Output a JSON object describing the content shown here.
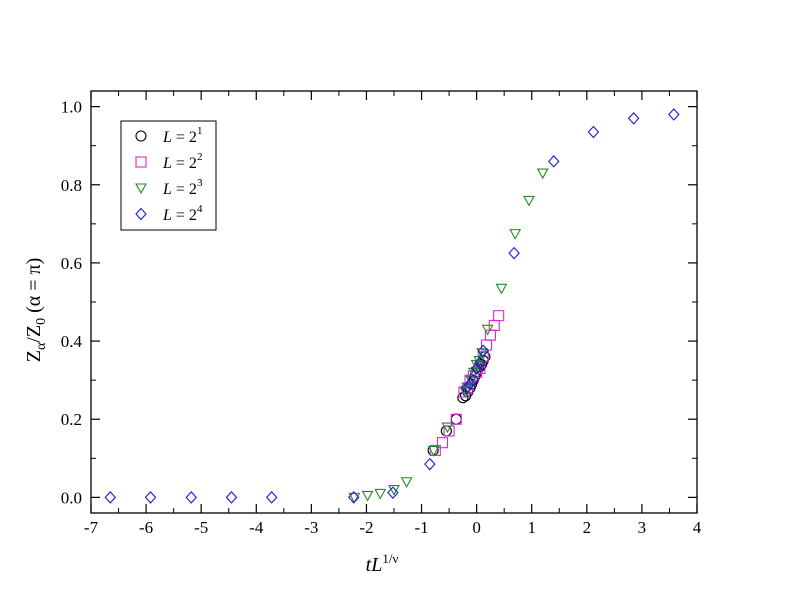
{
  "chart_data": {
    "type": "scatter",
    "xlabel_main": "tL",
    "xlabel_sup": "1/ν",
    "ylabel_html": "Z<sub>α</sub>/Z<sub>0</sub> (α = π)",
    "ylabel_parts": [
      "Z",
      "α",
      "/Z",
      "0",
      " (α = π)"
    ],
    "xlim": [
      -7,
      4
    ],
    "ylim": [
      -0.04,
      1.04
    ],
    "xticks": [
      -7,
      -6,
      -5,
      -4,
      -3,
      -2,
      -1,
      0,
      1,
      2,
      3,
      4
    ],
    "xtick_labels": [
      "-7",
      "-6",
      "-5",
      "-4",
      "-3",
      "-2",
      "-1",
      "0",
      "1",
      "2",
      "3",
      "4"
    ],
    "yticks": [
      0.0,
      0.2,
      0.4,
      0.6,
      0.8,
      1.0
    ],
    "ytick_labels": [
      "0.0",
      "0.2",
      "0.4",
      "0.6",
      "0.8",
      "1.0"
    ],
    "grid": false,
    "legend_position": "top-left",
    "series": [
      {
        "name": "L = 2^1",
        "label_base": "L = 2",
        "label_exp": "1",
        "marker": "circle",
        "color": "#000000",
        "x": [
          -0.79,
          -0.55,
          -0.37,
          -0.25,
          -0.2,
          -0.16,
          -0.12,
          -0.09,
          -0.06,
          -0.03,
          0.0,
          0.03,
          0.06,
          0.09,
          0.12,
          0.15
        ],
        "y": [
          0.12,
          0.17,
          0.2,
          0.255,
          0.26,
          0.27,
          0.28,
          0.29,
          0.3,
          0.31,
          0.32,
          0.33,
          0.335,
          0.34,
          0.35,
          0.36
        ]
      },
      {
        "name": "L = 2^2",
        "label_base": "L = 2",
        "label_exp": "2",
        "marker": "square",
        "color": "#d628d6",
        "x": [
          -0.75,
          -0.62,
          -0.5,
          -0.37,
          -0.23,
          -0.17,
          -0.12,
          -0.06,
          0.0,
          0.06,
          0.12,
          0.18,
          0.25,
          0.32,
          0.4
        ],
        "y": [
          0.12,
          0.14,
          0.17,
          0.2,
          0.27,
          0.28,
          0.3,
          0.31,
          0.32,
          0.33,
          0.36,
          0.39,
          0.415,
          0.44,
          0.465
        ]
      },
      {
        "name": "L = 2^3",
        "label_base": "L = 2",
        "label_exp": "3",
        "marker": "triangle-down",
        "color": "#1f8f1f",
        "x": [
          -2.22,
          -1.98,
          -1.75,
          -1.5,
          -1.27,
          -0.78,
          -0.53,
          -0.2,
          -0.15,
          -0.1,
          -0.05,
          0.0,
          0.05,
          0.1,
          0.2,
          0.45,
          0.7,
          0.95,
          1.2
        ],
        "y": [
          0.0,
          0.005,
          0.01,
          0.02,
          0.04,
          0.12,
          0.18,
          0.27,
          0.28,
          0.3,
          0.32,
          0.34,
          0.35,
          0.37,
          0.43,
          0.535,
          0.675,
          0.76,
          0.83
        ]
      },
      {
        "name": "L = 2^4",
        "label_base": "L = 2",
        "label_exp": "4",
        "marker": "diamond",
        "color": "#1a1adf",
        "x": [
          -6.65,
          -5.92,
          -5.18,
          -4.45,
          -3.72,
          -2.23,
          -1.52,
          -0.85,
          -0.18,
          -0.12,
          -0.06,
          0.0,
          0.06,
          0.12,
          0.68,
          1.4,
          2.12,
          2.85,
          3.58
        ],
        "y": [
          0.0,
          0.0,
          0.0,
          0.0,
          0.0,
          0.0,
          0.012,
          0.085,
          0.28,
          0.29,
          0.3,
          0.33,
          0.345,
          0.375,
          0.625,
          0.86,
          0.935,
          0.97,
          0.98
        ]
      }
    ]
  }
}
